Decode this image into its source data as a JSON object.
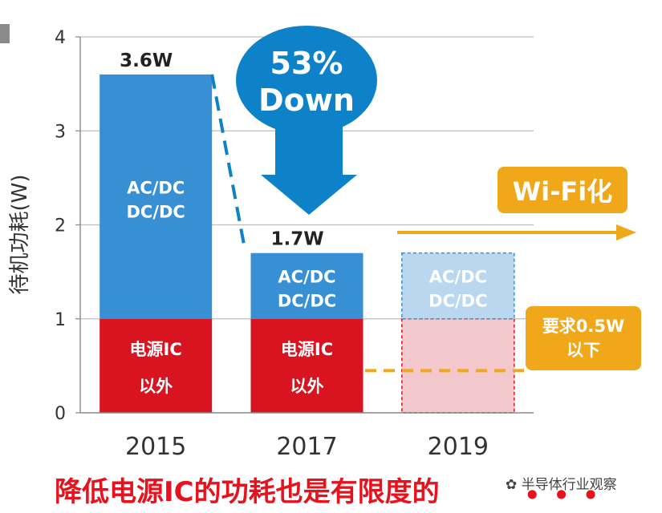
{
  "chart_data": {
    "type": "bar",
    "categories": [
      "2015",
      "2017",
      "2019"
    ],
    "series": [
      {
        "name": "电源IC 以外",
        "values": [
          1.0,
          1.0,
          1.0
        ]
      },
      {
        "name": "AC/DC DC/DC",
        "values": [
          2.6,
          0.7,
          0.7
        ]
      }
    ],
    "totals": [
      "3.6W",
      "1.7W",
      ""
    ],
    "segment_labels": {
      "top": [
        "AC/DC",
        "DC/DC"
      ],
      "bottom": [
        "电源IC",
        "以外"
      ]
    },
    "ylabel": "待机功耗(W)",
    "ylim": [
      0,
      4
    ],
    "yticks": [
      0,
      1,
      2,
      3,
      4
    ],
    "grid": true,
    "annotations": {
      "down_arrow": [
        "53%",
        "Down"
      ],
      "wifi_badge": "Wi-Fi化",
      "requirement": [
        "要求0.5W",
        "以下"
      ],
      "requirement_value": 0.5
    },
    "colors": {
      "top": "#3790d4",
      "bottom": "#d7141f",
      "projected_top": "#b9d7ee",
      "projected_bottom": "#f3c8cc",
      "arrow": "#0e82c9",
      "orange": "#f0a81a"
    }
  },
  "caption": "降低电源IC的功耗也是有限度的",
  "watermark": "半导体行业观察"
}
